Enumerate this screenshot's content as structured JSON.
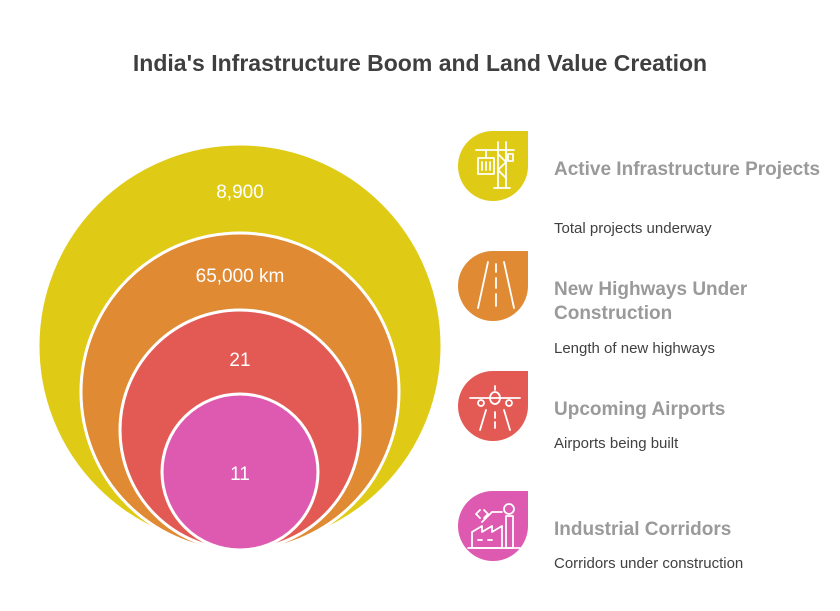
{
  "title": "India's Infrastructure Boom and Land Value Creation",
  "rings": [
    {
      "value": "8,900",
      "color": "#dfcb16"
    },
    {
      "value": "65,000 km",
      "color": "#e08a34"
    },
    {
      "value": "21",
      "color": "#e35a55"
    },
    {
      "value": "11",
      "color": "#dd5ab0"
    }
  ],
  "items": [
    {
      "title": "Active Infrastructure Projects",
      "description": "Total projects underway",
      "icon": "crane-icon",
      "color": "#dfcb16"
    },
    {
      "title": "New Highways Under Construction",
      "description": "Length of new highways",
      "icon": "highway-icon",
      "color": "#e08a34"
    },
    {
      "title": "Upcoming Airports",
      "description": "Airports being built",
      "icon": "airplane-icon",
      "color": "#e35a55"
    },
    {
      "title": "Industrial Corridors",
      "description": "Corridors under construction",
      "icon": "factory-icon",
      "color": "#dd5ab0"
    }
  ]
}
